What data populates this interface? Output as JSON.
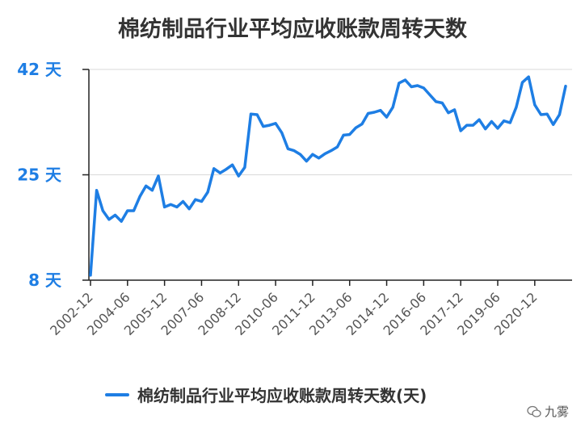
{
  "colors": {
    "line": "#1e7ee4",
    "axis_label": "#1e7ee4",
    "tick": "#555555",
    "grid": "#d9d9d9"
  },
  "watermark": {
    "text": "九雾",
    "icon": "wechat-icon"
  },
  "chart_data": {
    "type": "line",
    "title": "棉纺制品行业平均应收账款周转天数",
    "ylim": [
      8,
      42
    ],
    "yticks": [
      8,
      25,
      42
    ],
    "ytick_labels": [
      "8 天",
      "25 天",
      "42 天"
    ],
    "xtick_labels": [
      "2002-12",
      "2004-06",
      "2005-12",
      "2007-06",
      "2008-12",
      "2010-06",
      "2011-12",
      "2013-06",
      "2014-12",
      "2016-06",
      "2017-12",
      "2019-06",
      "2020-12"
    ],
    "legend": {
      "position": "bottom"
    },
    "grid": true,
    "series": [
      {
        "name": "棉纺制品行业平均应收账款周转天数(天)",
        "values": [
          8.8,
          22.5,
          19.2,
          17.8,
          18.5,
          17.5,
          19.2,
          19.2,
          21.5,
          23.2,
          22.5,
          24.8,
          19.8,
          20.2,
          19.8,
          20.7,
          19.5,
          21.0,
          20.7,
          22.2,
          26.0,
          25.3,
          25.9,
          26.6,
          24.8,
          26.2,
          34.8,
          34.7,
          32.8,
          33.0,
          33.3,
          31.8,
          29.2,
          28.9,
          28.3,
          27.2,
          28.3,
          27.7,
          28.4,
          28.9,
          29.5,
          31.4,
          31.5,
          32.6,
          33.2,
          34.9,
          35.1,
          35.4,
          34.3,
          35.9,
          39.8,
          40.3,
          39.2,
          39.4,
          39.0,
          37.9,
          36.8,
          36.6,
          35.0,
          35.5,
          32.1,
          33.0,
          33.0,
          33.9,
          32.4,
          33.6,
          32.5,
          33.7,
          33.4,
          35.9,
          39.9,
          40.8,
          36.3,
          34.7,
          34.8,
          33.1,
          34.7,
          39.3
        ]
      }
    ]
  }
}
